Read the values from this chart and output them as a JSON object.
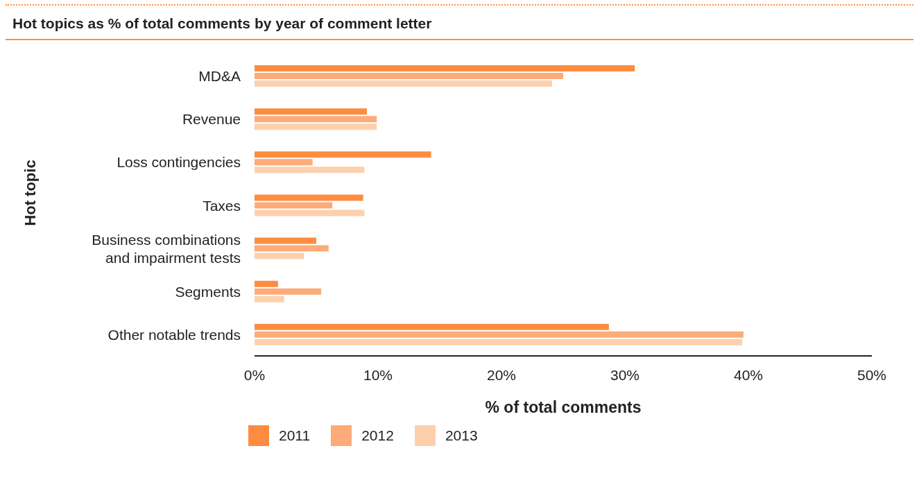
{
  "chart_data": {
    "type": "bar",
    "orientation": "horizontal",
    "title": "Hot topics as % of total comments by year of comment letter",
    "xlabel": "% of total comments",
    "ylabel": "Hot topic",
    "categories": [
      "MD&A",
      "Revenue",
      "Loss contingencies",
      "Taxes",
      "Business combinations and impairment tests",
      "Segments",
      "Other notable trends"
    ],
    "series": [
      {
        "name": "2011",
        "color": "#fd8c40",
        "values": [
          30.8,
          9.1,
          14.3,
          8.8,
          5.0,
          1.9,
          28.7
        ]
      },
      {
        "name": "2012",
        "color": "#fdab78",
        "values": [
          25.0,
          9.9,
          4.7,
          6.3,
          6.0,
          5.4,
          39.6
        ]
      },
      {
        "name": "2013",
        "color": "#fdd0ad",
        "values": [
          24.1,
          9.9,
          8.9,
          8.9,
          4.0,
          2.4,
          39.5
        ]
      }
    ],
    "xlim": [
      0,
      50
    ],
    "xticks": [
      {
        "value": 0,
        "label": "0%"
      },
      {
        "value": 10,
        "label": "10%"
      },
      {
        "value": 20,
        "label": "20%"
      },
      {
        "value": 30,
        "label": "30%"
      },
      {
        "value": 40,
        "label": "40%"
      },
      {
        "value": 50,
        "label": "50%"
      }
    ],
    "grid": false,
    "legend": "bottom left"
  }
}
